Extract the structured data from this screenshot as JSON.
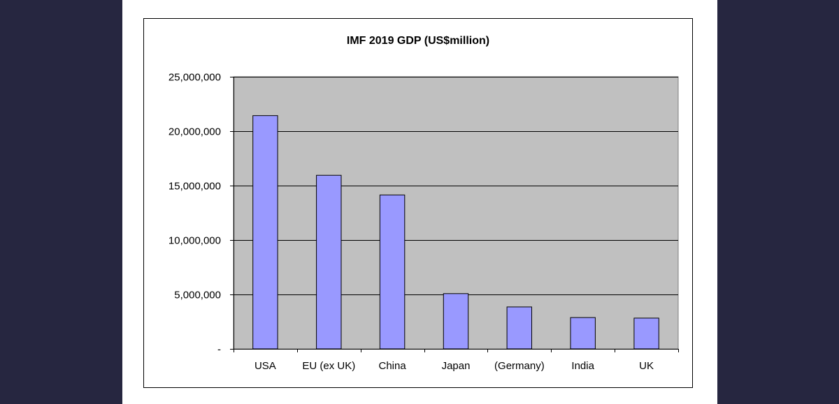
{
  "colors": {
    "outer_background": "#262640",
    "page_background": "#ffffff",
    "plot_background": "#c0c0c0",
    "bar_fill": "#9999ff",
    "bar_stroke": "#000000",
    "grid": "#000000"
  },
  "chart_data": {
    "type": "bar",
    "title": "IMF 2019 GDP (US$million)",
    "xlabel": "",
    "ylabel": "",
    "categories": [
      "USA",
      "EU (ex UK)",
      "China",
      "Japan",
      "(Germany)",
      "India",
      "UK"
    ],
    "values": [
      21430000,
      15950000,
      14140000,
      5080000,
      3850000,
      2880000,
      2830000
    ],
    "ylim": [
      0,
      25000000
    ],
    "y_ticks": [
      0,
      5000000,
      10000000,
      15000000,
      20000000,
      25000000
    ],
    "y_tick_labels": [
      "-",
      "5,000,000",
      "10,000,000",
      "15,000,000",
      "20,000,000",
      "25,000,000"
    ],
    "grid": true,
    "legend": "none"
  }
}
